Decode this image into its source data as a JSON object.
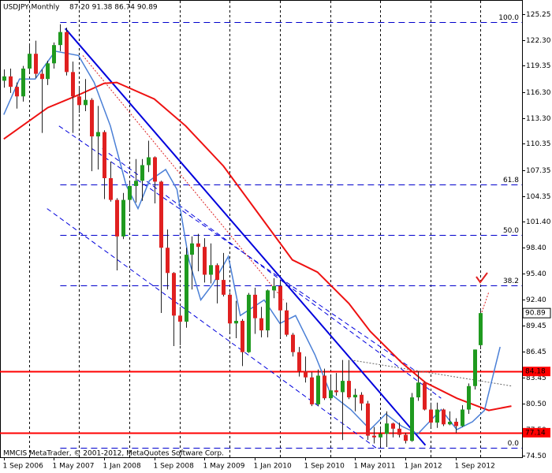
{
  "chart_data": {
    "type": "candlestick",
    "title": "USDJPY,Monthly",
    "ohlc_text": "87.20 91.38 86.74 90.89",
    "footer": "MMCIS MetaTrader, © 2001-2012, MetaQuotes Software Corp.",
    "categories": [
      "1 Sep 2006",
      null,
      null,
      null,
      null,
      null,
      null,
      null,
      "1 May 2007",
      null,
      null,
      null,
      null,
      null,
      null,
      null,
      "1 Jan 2008",
      null,
      null,
      null,
      null,
      null,
      null,
      null,
      "1 Sep 2008",
      null,
      null,
      null,
      null,
      null,
      null,
      null,
      "1 May 2009",
      null,
      null,
      null,
      null,
      null,
      null,
      null,
      "1 Jan 2010",
      null,
      null,
      null,
      null,
      null,
      null,
      null,
      "1 Sep 2010",
      null,
      null,
      null,
      null,
      null,
      null,
      null,
      "1 May 2011",
      null,
      null,
      null,
      null,
      null,
      null,
      null,
      "1 Jan 2012",
      null,
      null,
      null,
      null,
      null,
      null,
      null,
      "1 Sep 2012",
      null,
      null,
      null,
      null
    ],
    "open": [
      117.6,
      118.1,
      116.9,
      115.8,
      119.0,
      120.7,
      118.4,
      117.8,
      119.6,
      121.7,
      123.2,
      118.6,
      115.8,
      114.8,
      115.4,
      111.2,
      111.7,
      106.4,
      103.9,
      99.7,
      103.9,
      105.5,
      106.1,
      107.9,
      108.8,
      106.0,
      98.4,
      95.5,
      90.6,
      89.9,
      97.6,
      98.9,
      98.5,
      95.3,
      96.4,
      94.7,
      93.0,
      89.7,
      90.0,
      86.4,
      93.0,
      90.3,
      88.9,
      93.5,
      94.0,
      91.2,
      88.4,
      86.4,
      84.2,
      83.5,
      80.4,
      83.7,
      81.1,
      82.0,
      81.8,
      83.1,
      81.2,
      81.5,
      80.5,
      76.8,
      76.6,
      77.0,
      78.2,
      77.6,
      76.9,
      76.2,
      81.2,
      82.9,
      79.8,
      78.3,
      79.8,
      78.1,
      78.4,
      77.9,
      79.8,
      82.5,
      87.2
    ],
    "high": [
      118.9,
      119.0,
      117.4,
      119.3,
      121.9,
      122.2,
      118.9,
      119.9,
      122.0,
      124.1,
      123.7,
      119.8,
      117.0,
      117.8,
      115.6,
      114.7,
      111.9,
      108.3,
      104.1,
      104.7,
      105.9,
      108.6,
      108.6,
      110.7,
      108.9,
      106.1,
      100.5,
      95.6,
      91.6,
      98.4,
      99.7,
      100.0,
      99.5,
      98.9,
      96.6,
      97.8,
      93.3,
      92.3,
      90.2,
      93.2,
      93.8,
      91.6,
      93.6,
      94.9,
      94.6,
      92.1,
      88.6,
      87.0,
      85.9,
      84.1,
      84.4,
      84.5,
      83.7,
      84.0,
      85.5,
      85.5,
      82.2,
      81.8,
      80.8,
      77.8,
      77.8,
      79.6,
      78.3,
      78.3,
      77.1,
      81.7,
      84.2,
      83.0,
      80.6,
      80.6,
      79.9,
      79.6,
      78.8,
      80.3,
      82.8,
      86.7,
      91.38
    ],
    "low": [
      116.8,
      116.2,
      114.4,
      115.2,
      118.6,
      117.9,
      111.6,
      117.1,
      119.0,
      121.0,
      118.2,
      111.6,
      113.9,
      114.1,
      107.2,
      107.4,
      104.0,
      103.7,
      95.8,
      99.4,
      102.5,
      103.6,
      103.8,
      107.1,
      103.5,
      90.9,
      93.6,
      87.1,
      87.2,
      89.2,
      93.6,
      95.7,
      94.4,
      94.3,
      92.0,
      92.8,
      88.7,
      88.0,
      84.8,
      86.3,
      88.5,
      88.1,
      88.1,
      92.6,
      88.1,
      88.2,
      85.9,
      83.6,
      82.9,
      80.2,
      80.2,
      80.9,
      81.0,
      81.4,
      76.3,
      81.0,
      79.6,
      79.7,
      76.3,
      75.9,
      75.6,
      75.5,
      76.6,
      76.6,
      75.9,
      76.1,
      80.8,
      79.7,
      77.7,
      77.7,
      77.9,
      78.0,
      77.1,
      77.8,
      79.3,
      82.1,
      86.74
    ],
    "close": [
      118.1,
      116.9,
      115.8,
      119.0,
      120.7,
      118.4,
      117.8,
      119.6,
      121.7,
      123.2,
      118.6,
      115.8,
      114.8,
      115.4,
      111.2,
      111.7,
      106.4,
      103.9,
      99.7,
      103.9,
      105.5,
      106.1,
      107.9,
      108.8,
      106.0,
      98.4,
      95.5,
      90.6,
      89.9,
      97.6,
      98.9,
      98.5,
      95.3,
      96.4,
      94.7,
      93.0,
      89.7,
      90.0,
      86.4,
      93.0,
      90.3,
      88.9,
      93.5,
      94.0,
      91.2,
      88.4,
      86.4,
      84.2,
      83.5,
      80.4,
      83.7,
      81.1,
      82.0,
      81.8,
      83.1,
      81.2,
      81.5,
      80.5,
      76.8,
      76.6,
      77.0,
      78.2,
      77.6,
      76.9,
      76.2,
      81.2,
      82.9,
      79.8,
      78.3,
      79.8,
      78.1,
      78.4,
      77.9,
      79.8,
      82.5,
      86.7,
      90.89
    ],
    "up_color": "#1f9a1f",
    "down_color": "#e02020",
    "wick_color": "#222222",
    "series": [
      {
        "color": "#ee1111",
        "width": 2,
        "x": [
          0,
          7,
          12,
          16,
          18,
          24,
          29,
          35,
          40,
          46,
          50,
          55,
          58.4,
          63.4,
          67.2,
          72.2,
          77.3,
          80.9
        ],
        "values": [
          110.9,
          114.5,
          116.0,
          117.3,
          117.4,
          115.5,
          112.4,
          107.8,
          102.9,
          97.0,
          95.6,
          92.0,
          88.8,
          85.2,
          82.9,
          81.1,
          79.7,
          80.2
        ]
      },
      {
        "color": "#4a7fd6",
        "width": 1.5,
        "x": [
          0,
          2.5,
          5,
          8.2,
          11.9,
          14.4,
          17,
          19.5,
          21.4,
          23.2,
          25.8,
          27.6,
          29.5,
          31.4,
          33.3,
          35.8,
          37.7,
          39.6,
          41.5,
          44,
          46.5,
          49.6,
          52.1,
          55.3,
          58.4,
          60.9,
          63.4,
          66,
          69.7,
          72.2,
          74.7,
          76.6,
          79.1
        ],
        "values": [
          113.7,
          117.8,
          117.8,
          121.0,
          120.5,
          117.4,
          112.4,
          105.6,
          102.9,
          106.1,
          107.4,
          105.1,
          97.0,
          92.4,
          94.2,
          97.4,
          90.6,
          91.5,
          92.4,
          89.7,
          90.6,
          86.1,
          81.6,
          79.8,
          77.5,
          79.3,
          77.9,
          77.0,
          79.8,
          77.5,
          78.4,
          79.7,
          87.0
        ]
      }
    ],
    "trendlines": [
      {
        "color": "#0000dd",
        "width": 2,
        "dash": "",
        "x": [
          9.8,
          67.2
        ],
        "y": [
          123.6,
          75.7
        ]
      },
      {
        "color": "#0000dd",
        "width": 1,
        "dash": "6 4",
        "x": [
          8.8,
          65.3
        ],
        "y": [
          112.4,
          84.4
        ]
      },
      {
        "color": "#0000dd",
        "width": 1,
        "dash": "6 4",
        "x": [
          6.9,
          59.7
        ],
        "y": [
          102.9,
          75.2
        ]
      },
      {
        "color": "#0000dd",
        "width": 1,
        "dash": "6 4",
        "x": [
          15.7,
          69.7
        ],
        "y": [
          109.8,
          81.1
        ]
      },
      {
        "color": "#dd2222",
        "width": 1,
        "dash": "2 2",
        "x": [
          12.6,
          44.6
        ],
        "y": [
          120.5,
          92.4
        ]
      },
      {
        "color": "#666666",
        "width": 1,
        "dash": "2 2",
        "x": [
          55.3,
          81.0
        ],
        "y": [
          85.5,
          82.5
        ]
      }
    ],
    "fib_levels": [
      {
        "label": "100.0",
        "price": 124.34
      },
      {
        "label": "61.8",
        "price": 105.64
      },
      {
        "label": "50.0",
        "price": 99.87
      },
      {
        "label": "38.2",
        "price": 94.09
      },
      {
        "label": "0.0",
        "price": 75.39
      }
    ],
    "fib_color": "#0000cc",
    "levels": [
      {
        "price": 84.18,
        "color": "#ff0000"
      },
      {
        "price": 77.14,
        "color": "#ff0000"
      }
    ],
    "xlim": [
      -0.6,
      82.6
    ],
    "xgrid": [
      4,
      12,
      20,
      28,
      36,
      44,
      52,
      60,
      68,
      76
    ],
    "ylim": [
      74.5,
      125.25
    ],
    "yticks": [
      125.25,
      {
        "value": 122.3,
        "label": "122.30"
      },
      119.35,
      {
        "value": 116.3,
        "label": "116.30"
      },
      {
        "value": 113.3,
        "label": "113.30"
      },
      110.35,
      107.35,
      104.35,
      {
        "value": 101.4,
        "label": "101.40"
      },
      {
        "value": 98.4,
        "label": "98.40"
      },
      {
        "value": 95.4,
        "label": "95.40"
      },
      {
        "value": 92.4,
        "label": "92.40"
      },
      89.45,
      86.45,
      83.45,
      {
        "value": 80.5,
        "label": "80.50"
      },
      {
        "value": 77.5,
        "label": "77.50"
      },
      {
        "value": 74.5,
        "label": "74.50"
      }
    ],
    "grid": true
  }
}
